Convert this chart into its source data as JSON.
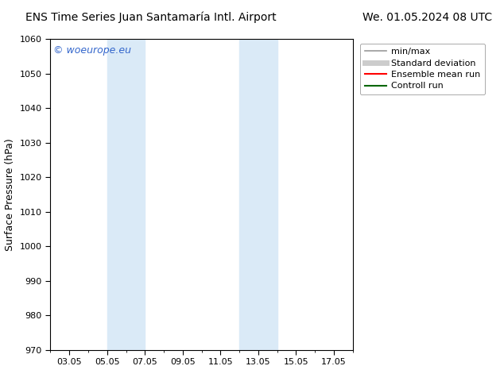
{
  "title_left": "ENS Time Series Juan Santamaría Intl. Airport",
  "title_right": "We. 01.05.2024 08 UTC",
  "ylabel": "Surface Pressure (hPa)",
  "ylim": [
    970,
    1060
  ],
  "yticks": [
    970,
    980,
    990,
    1000,
    1010,
    1020,
    1030,
    1040,
    1050,
    1060
  ],
  "xlim": [
    1.0,
    17.0
  ],
  "xtick_positions": [
    2,
    4,
    6,
    8,
    10,
    12,
    14,
    16
  ],
  "xtick_labels": [
    "03.05",
    "05.05",
    "07.05",
    "09.05",
    "11.05",
    "13.05",
    "15.05",
    "17.05"
  ],
  "shaded_regions": [
    {
      "x_start": 4.0,
      "x_end": 6.0,
      "color": "#daeaf7"
    },
    {
      "x_start": 11.0,
      "x_end": 13.0,
      "color": "#daeaf7"
    }
  ],
  "watermark_text": "© woeurope.eu",
  "watermark_color": "#3366cc",
  "bg_color": "#ffffff",
  "legend_items": [
    {
      "label": "min/max",
      "color": "#999999",
      "lw": 1.2
    },
    {
      "label": "Standard deviation",
      "color": "#cccccc",
      "lw": 5
    },
    {
      "label": "Ensemble mean run",
      "color": "#ff0000",
      "lw": 1.5
    },
    {
      "label": "Controll run",
      "color": "#006600",
      "lw": 1.5
    }
  ],
  "title_fontsize": 10,
  "ylabel_fontsize": 9,
  "tick_fontsize": 8,
  "legend_fontsize": 8,
  "watermark_fontsize": 9,
  "spine_color": "#000000"
}
